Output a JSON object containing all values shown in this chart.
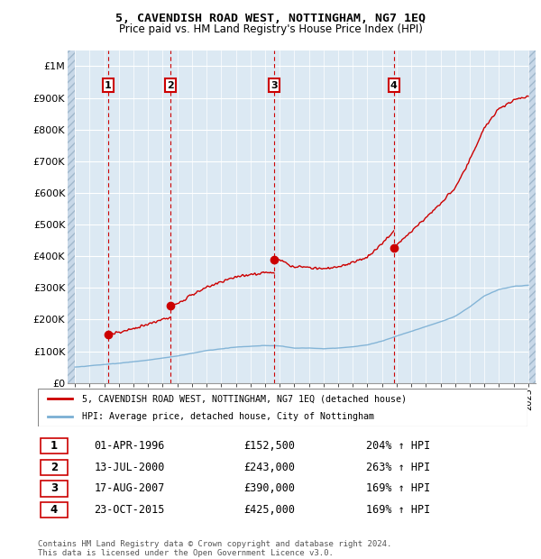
{
  "title": "5, CAVENDISH ROAD WEST, NOTTINGHAM, NG7 1EQ",
  "subtitle": "Price paid vs. HM Land Registry's House Price Index (HPI)",
  "legend_line1": "5, CAVENDISH ROAD WEST, NOTTINGHAM, NG7 1EQ (detached house)",
  "legend_line2": "HPI: Average price, detached house, City of Nottingham",
  "footer": "Contains HM Land Registry data © Crown copyright and database right 2024.\nThis data is licensed under the Open Government Licence v3.0.",
  "sale_color": "#cc0000",
  "hpi_color": "#7aafd4",
  "background_color": "#dce9f3",
  "purchases": [
    {
      "label": "1",
      "date_num": 1996.25,
      "price": 152500,
      "text": "01-APR-1996",
      "amount": "£152,500",
      "hpi_pct": "204% ↑ HPI"
    },
    {
      "label": "2",
      "date_num": 2000.54,
      "price": 243000,
      "text": "13-JUL-2000",
      "amount": "£243,000",
      "hpi_pct": "263% ↑ HPI"
    },
    {
      "label": "3",
      "date_num": 2007.63,
      "price": 390000,
      "text": "17-AUG-2007",
      "amount": "£390,000",
      "hpi_pct": "169% ↑ HPI"
    },
    {
      "label": "4",
      "date_num": 2015.81,
      "price": 425000,
      "text": "23-OCT-2015",
      "amount": "£425,000",
      "hpi_pct": "169% ↑ HPI"
    }
  ],
  "ylim": [
    0,
    1050000
  ],
  "xlim_data": [
    1994.0,
    2025.0
  ],
  "xlim": [
    1993.5,
    2025.5
  ],
  "yticks": [
    0,
    100000,
    200000,
    300000,
    400000,
    500000,
    600000,
    700000,
    800000,
    900000,
    1000000
  ],
  "ytick_labels": [
    "£0",
    "£100K",
    "£200K",
    "£300K",
    "£400K",
    "£500K",
    "£600K",
    "£700K",
    "£800K",
    "£900K",
    "£1M"
  ]
}
